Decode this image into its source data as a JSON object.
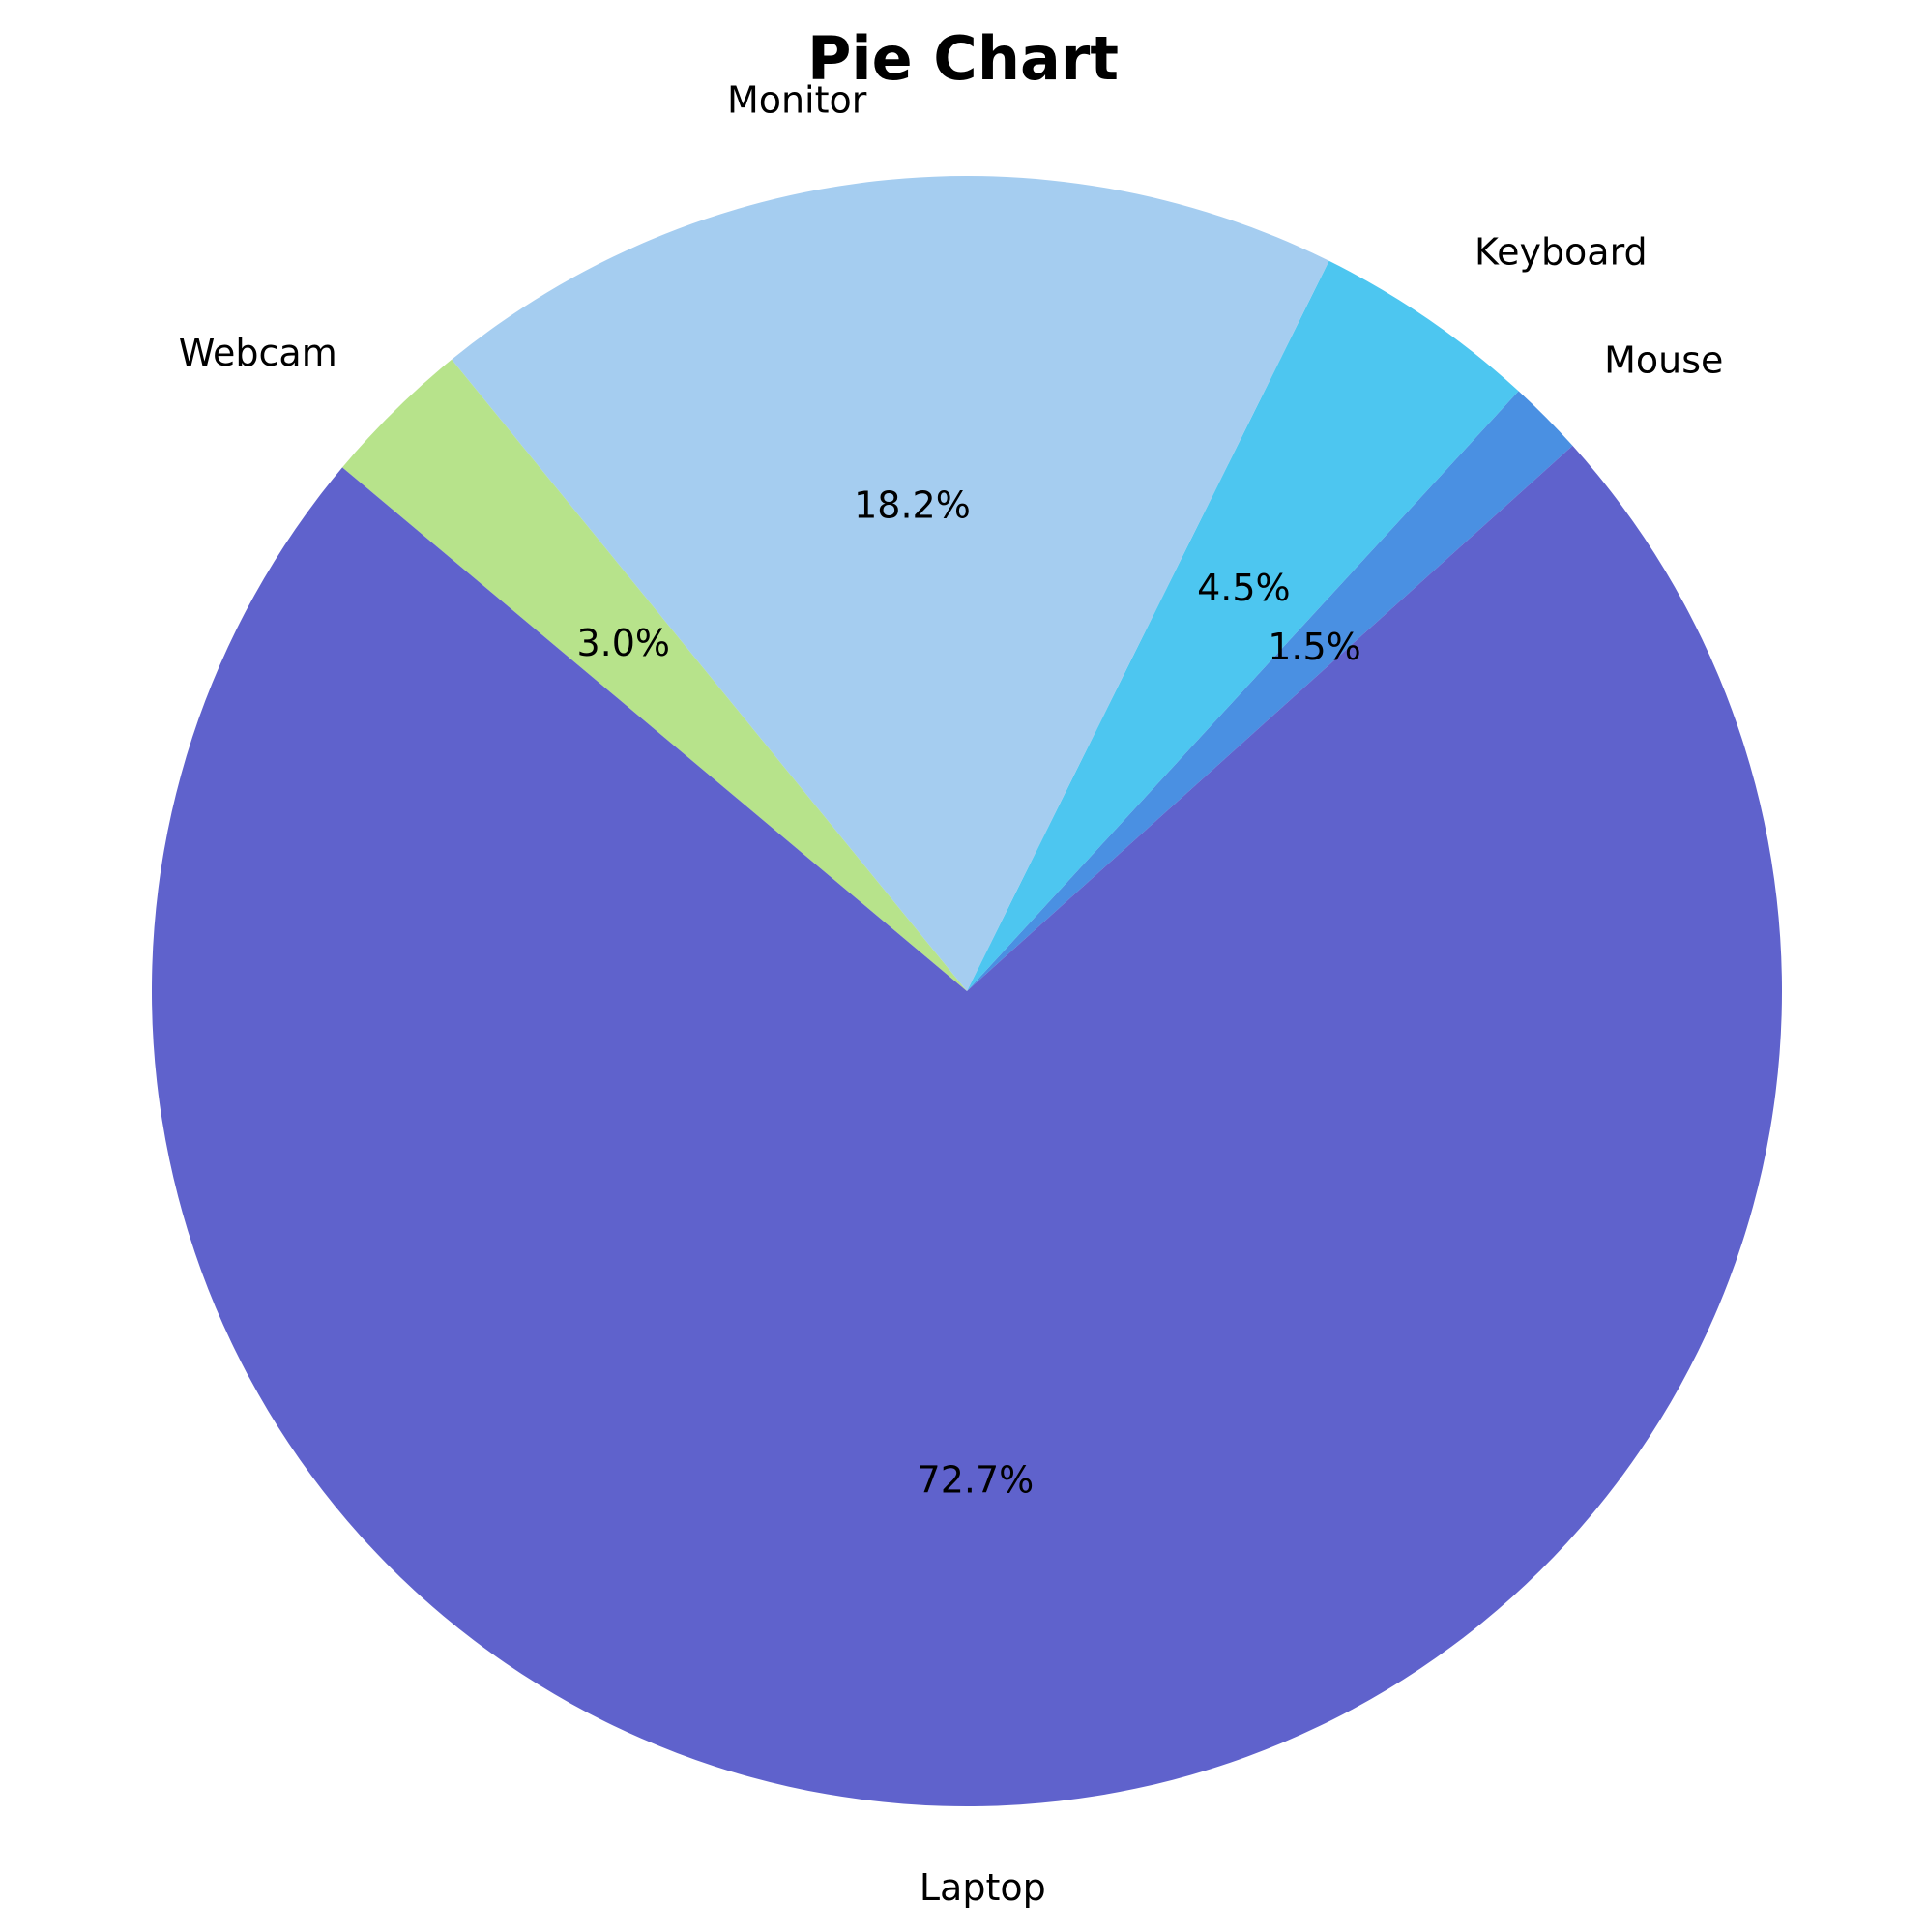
{
  "chart_data": {
    "type": "pie",
    "title": "Pie Chart",
    "slices": [
      {
        "label": "Mouse",
        "value": 1.5,
        "pct_label": "1.5%",
        "color": "#4a90e2"
      },
      {
        "label": "Keyboard",
        "value": 4.5,
        "pct_label": "4.5%",
        "color": "#4dc6f0"
      },
      {
        "label": "Monitor",
        "value": 18.2,
        "pct_label": "18.2%",
        "color": "#a5cdf0"
      },
      {
        "label": "Webcam",
        "value": 3.0,
        "pct_label": "3.0%",
        "color": "#b7e38b"
      },
      {
        "label": "Laptop",
        "value": 72.7,
        "pct_label": "72.7%",
        "color": "#5f62cc"
      }
    ],
    "legend": false
  }
}
